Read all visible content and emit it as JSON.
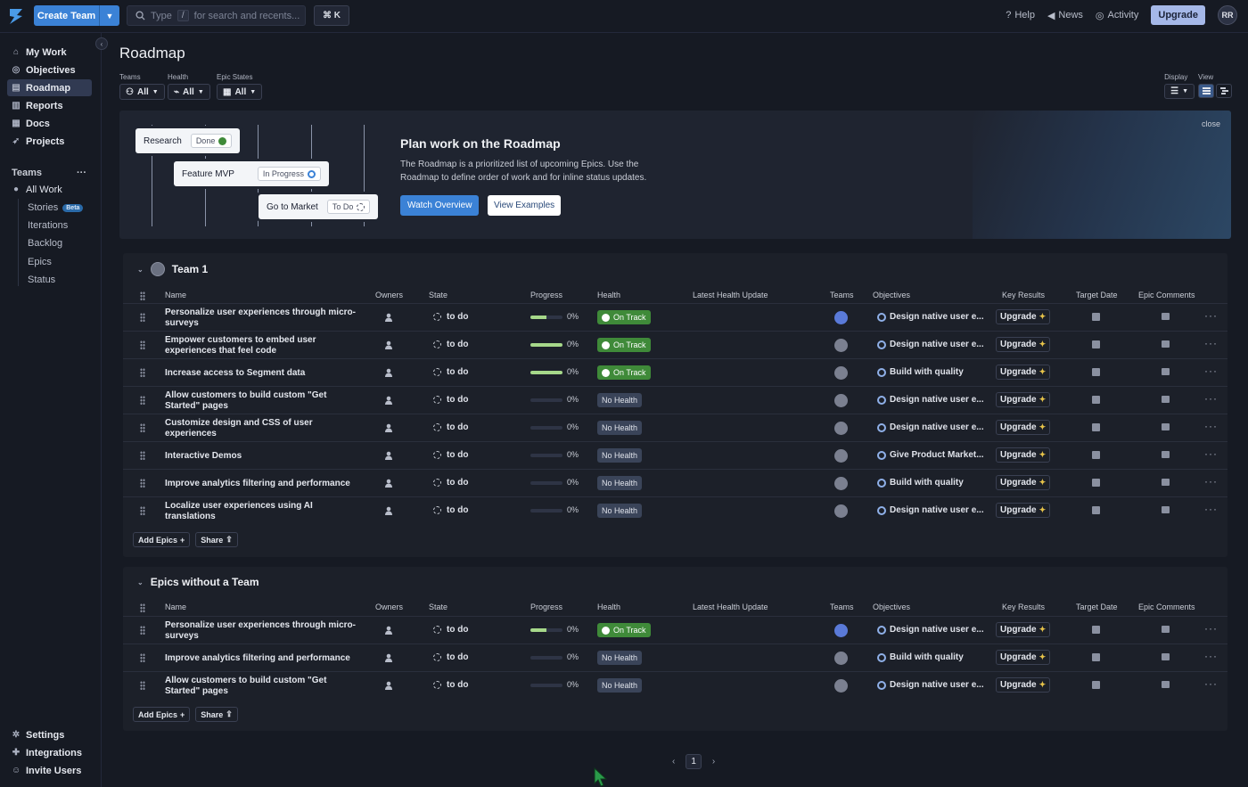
{
  "topbar": {
    "create_team": "Create Team",
    "search_prefix": "Type",
    "search_key": "/",
    "search_suffix": "for search and recents...",
    "shortcut": "⌘ K",
    "help": "Help",
    "news": "News",
    "activity": "Activity",
    "upgrade": "Upgrade",
    "avatar": "RR"
  },
  "sidebar": {
    "items": [
      {
        "label": "My Work"
      },
      {
        "label": "Objectives"
      },
      {
        "label": "Roadmap"
      },
      {
        "label": "Reports"
      },
      {
        "label": "Docs"
      },
      {
        "label": "Projects"
      }
    ],
    "teams_label": "Teams",
    "teams_more": "···",
    "all_work": "All Work",
    "sub": [
      "Stories",
      "Iterations",
      "Backlog",
      "Epics",
      "Status"
    ],
    "beta": "Beta",
    "bottom": [
      "Settings",
      "Integrations",
      "Invite Users"
    ]
  },
  "page": {
    "title": "Roadmap",
    "filters": [
      {
        "label": "Teams",
        "value": "All"
      },
      {
        "label": "Health",
        "value": "All"
      },
      {
        "label": "Epic States",
        "value": "All"
      }
    ],
    "display_label": "Display",
    "view_label": "View"
  },
  "banner": {
    "cards": [
      {
        "name": "Research",
        "status": "Done"
      },
      {
        "name": "Feature MVP",
        "status": "In Progress"
      },
      {
        "name": "Go to Market",
        "status": "To Do"
      }
    ],
    "heading": "Plan work on the Roadmap",
    "body": "The Roadmap is a prioritized list of upcoming Epics. Use the Roadmap to define order of work and for inline status updates.",
    "watch": "Watch Overview",
    "examples": "View Examples",
    "close": "close"
  },
  "columns": [
    "Name",
    "Owners",
    "State",
    "Progress",
    "Health",
    "Latest Health Update",
    "Teams",
    "Objectives",
    "Key Results",
    "Target Date",
    "Epic Comments"
  ],
  "team1": {
    "name": "Team 1",
    "rows": [
      {
        "name": "Personalize user experiences through micro-surveys",
        "state": "to do",
        "progress": 0.5,
        "pct": "0%",
        "health": "On Track",
        "objective": "Design native user e...",
        "kr": "Upgrade",
        "team_blue": true
      },
      {
        "name": "Empower customers to embed user experiences that feel code",
        "state": "to do",
        "progress": 1.0,
        "pct": "0%",
        "health": "On Track",
        "objective": "Design native user e...",
        "kr": "Upgrade",
        "team_blue": false
      },
      {
        "name": "Increase access to Segment data",
        "state": "to do",
        "progress": 1.0,
        "pct": "0%",
        "health": "On Track",
        "objective": "Build with quality",
        "kr": "Upgrade",
        "team_blue": false
      },
      {
        "name": "Allow customers to build custom \"Get Started\" pages",
        "state": "to do",
        "progress": 0,
        "pct": "0%",
        "health": "No Health",
        "objective": "Design native user e...",
        "kr": "Upgrade",
        "team_blue": false
      },
      {
        "name": "Customize design and CSS of user experiences",
        "state": "to do",
        "progress": 0,
        "pct": "0%",
        "health": "No Health",
        "objective": "Design native user e...",
        "kr": "Upgrade",
        "team_blue": false
      },
      {
        "name": "Interactive Demos",
        "state": "to do",
        "progress": 0,
        "pct": "0%",
        "health": "No Health",
        "objective": "Give Product Market...",
        "kr": "Upgrade",
        "team_blue": false
      },
      {
        "name": "Improve analytics filtering and performance",
        "state": "to do",
        "progress": 0,
        "pct": "0%",
        "health": "No Health",
        "objective": "Build with quality",
        "kr": "Upgrade",
        "team_blue": false
      },
      {
        "name": "Localize user experiences using AI translations",
        "state": "to do",
        "progress": 0,
        "pct": "0%",
        "health": "No Health",
        "objective": "Design native user e...",
        "kr": "Upgrade",
        "team_blue": false
      }
    ]
  },
  "noteam": {
    "name": "Epics without a Team",
    "rows": [
      {
        "name": "Personalize user experiences through micro-surveys",
        "state": "to do",
        "progress": 0.5,
        "pct": "0%",
        "health": "On Track",
        "objective": "Design native user e...",
        "kr": "Upgrade",
        "team_blue": true
      },
      {
        "name": "Improve analytics filtering and performance",
        "state": "to do",
        "progress": 0,
        "pct": "0%",
        "health": "No Health",
        "objective": "Build with quality",
        "kr": "Upgrade",
        "team_blue": false
      },
      {
        "name": "Allow customers to build custom \"Get Started\" pages",
        "state": "to do",
        "progress": 0,
        "pct": "0%",
        "health": "No Health",
        "objective": "Design native user e...",
        "kr": "Upgrade",
        "team_blue": false
      }
    ]
  },
  "footer_buttons": {
    "add": "Add Epics",
    "share": "Share"
  },
  "pager": {
    "prev": "‹",
    "page": "1",
    "next": "›"
  }
}
